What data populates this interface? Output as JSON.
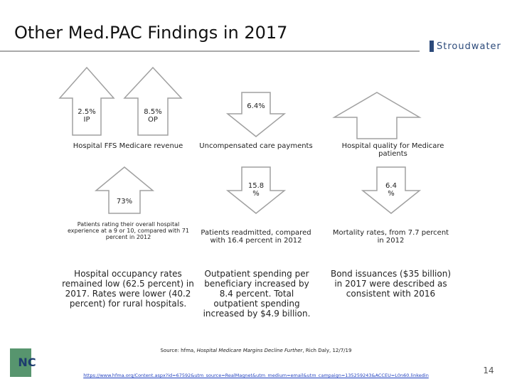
{
  "header": {
    "title": "Other Med.PAC Findings in 2017",
    "logo": "Stroudwater"
  },
  "cells": [
    {
      "arrows": [
        "2.5%\nIP",
        "8.5%\nOP"
      ],
      "caption": "Hospital FFS Medicare revenue"
    },
    {
      "arrows": [
        "6.4%"
      ],
      "caption": "Uncompensated care payments"
    },
    {
      "arrows": [],
      "caption": "Hospital quality for Medicare patients"
    },
    {
      "arrows": [
        "73%"
      ],
      "caption": "Patients rating their overall hospital experience at a 9 or 10, compared with 71 percent in 2012"
    },
    {
      "arrows": [
        "15.8\n%"
      ],
      "caption": "Patients readmitted, compared with 16.4 percent in 2012"
    },
    {
      "arrows": [
        "6.4\n%"
      ],
      "caption": "Mortality rates, from 7.7 percent in 2012"
    }
  ],
  "notes": [
    "Hospital occupancy rates remained low (62.5 percent) in 2017. Rates were lower (40.2 percent) for rural hospitals.",
    "Outpatient spending per beneficiary increased by 8.4 percent. Total outpatient spending increased by $4.9 billion.",
    "Bond issuances ($35 billion) in 2017 were described as consistent with 2016"
  ],
  "footer": {
    "source_prefix": "Source: hfma, ",
    "source_title": "Hospital Medicare Margins Decline Further",
    "source_suffix": ", Rich Daly, 12/7/19",
    "url": "https://www.hfma.org/Content.aspx?id=67592&utm_source=RealMagnet&utm_medium=email&utm_campaign=135259243&ACCEU=L0n60.linkedin",
    "page": "14",
    "logo": "NC"
  }
}
